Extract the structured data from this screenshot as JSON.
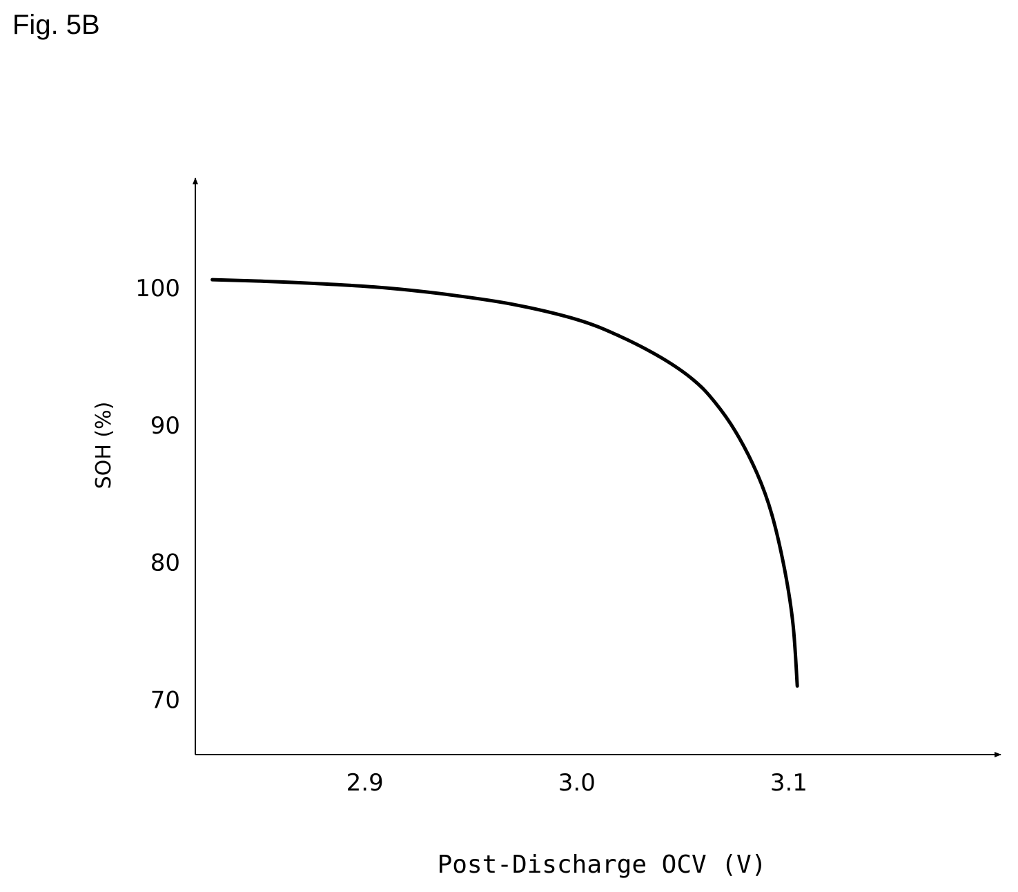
{
  "figure_label": "Fig. 5B",
  "chart_data": {
    "type": "line",
    "title": "",
    "xlabel": "Post-Discharge OCV (V)",
    "ylabel": "SOH (%)",
    "x_ticks": [
      "2.9",
      "3.0",
      "3.1"
    ],
    "y_ticks": [
      "100",
      "90",
      "80",
      "70"
    ],
    "xlim": [
      2.82,
      3.2
    ],
    "ylim": [
      66,
      108
    ],
    "grid": false,
    "legend": "none",
    "line_color": "#000000",
    "series": [
      {
        "x": [
          2.828,
          2.85,
          2.88,
          2.91,
          2.94,
          2.97,
          3.0,
          3.02,
          3.04,
          3.055,
          3.065,
          3.075,
          3.085,
          3.092,
          3.098,
          3.102,
          3.104
        ],
        "y": [
          100.6,
          100.5,
          100.3,
          100.0,
          99.5,
          98.8,
          97.7,
          96.5,
          94.9,
          93.3,
          91.7,
          89.5,
          86.5,
          83.5,
          79.5,
          75.5,
          71.0
        ]
      }
    ]
  }
}
